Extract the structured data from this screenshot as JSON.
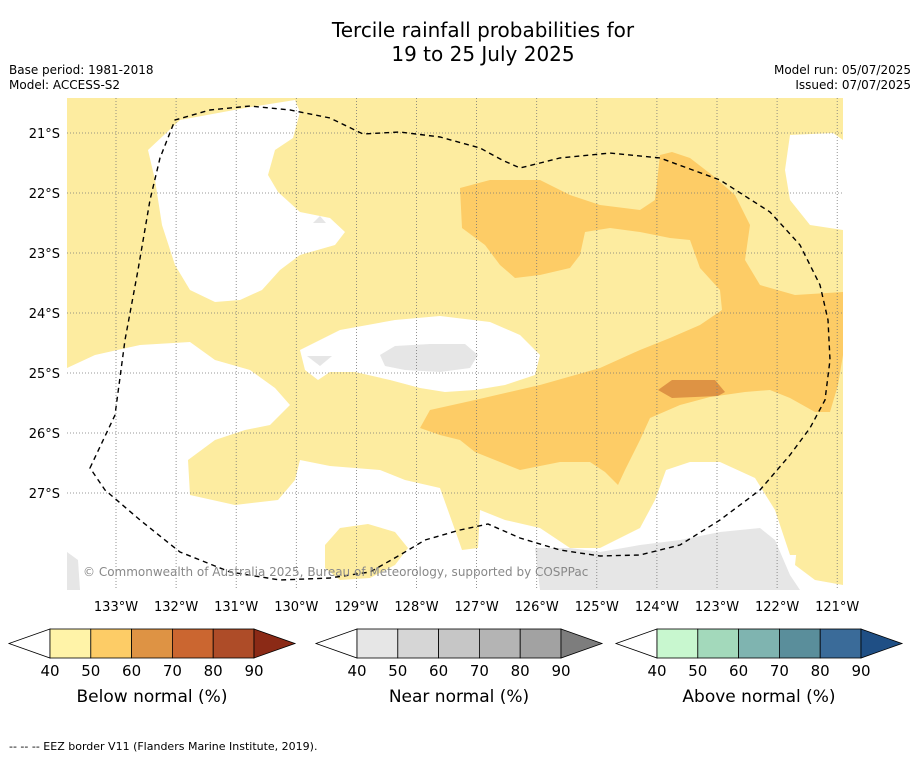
{
  "title": {
    "line1": "Tercile rainfall probabilities for",
    "line2": "19 to 25 July 2025"
  },
  "meta": {
    "base_period": "Base period: 1981-2018",
    "model": "Model: ACCESS-S2",
    "model_run": "Model run: 05/07/2025",
    "issued": "Issued: 07/07/2025"
  },
  "copyright": "© Commonwealth of Australia 2025, Bureau of Meteorology, supported by COSPPac",
  "map": {
    "lat_labels": [
      "21°S",
      "22°S",
      "23°S",
      "24°S",
      "25°S",
      "26°S",
      "27°S"
    ],
    "lon_labels": [
      "133°W",
      "132°W",
      "131°W",
      "130°W",
      "129°W",
      "128°W",
      "127°W",
      "126°W",
      "125°W",
      "124°W",
      "123°W",
      "122°W",
      "121°W"
    ],
    "colors": {
      "below_40_50": "#fdeca0",
      "below_50_60": "#fdcc66",
      "below_60_70": "#de9344",
      "near_40_50": "#e6e6e6",
      "eez_line": "#000000"
    }
  },
  "colorbars": [
    {
      "title": "Below normal (%)",
      "ticks": [
        "40",
        "50",
        "60",
        "70",
        "80",
        "90"
      ],
      "colors": [
        "#fff3a8",
        "#fdcc66",
        "#de9344",
        "#cb6630",
        "#ae4c28",
        "#8b2a16"
      ]
    },
    {
      "title": "Near normal (%)",
      "ticks": [
        "40",
        "50",
        "60",
        "70",
        "80",
        "90"
      ],
      "colors": [
        "#e6e6e6",
        "#d6d6d6",
        "#c6c6c6",
        "#b4b4b4",
        "#a2a2a2",
        "#7d7d7d"
      ]
    },
    {
      "title": "Above normal (%)",
      "ticks": [
        "40",
        "50",
        "60",
        "70",
        "80",
        "90"
      ],
      "colors": [
        "#c8f7cf",
        "#a3d9bb",
        "#7fb4b0",
        "#5a8e9b",
        "#3a6b99",
        "#1f4f85"
      ]
    }
  ],
  "footer": "--  --  -- EEZ border V11 (Flanders Marine Institute, 2019)."
}
